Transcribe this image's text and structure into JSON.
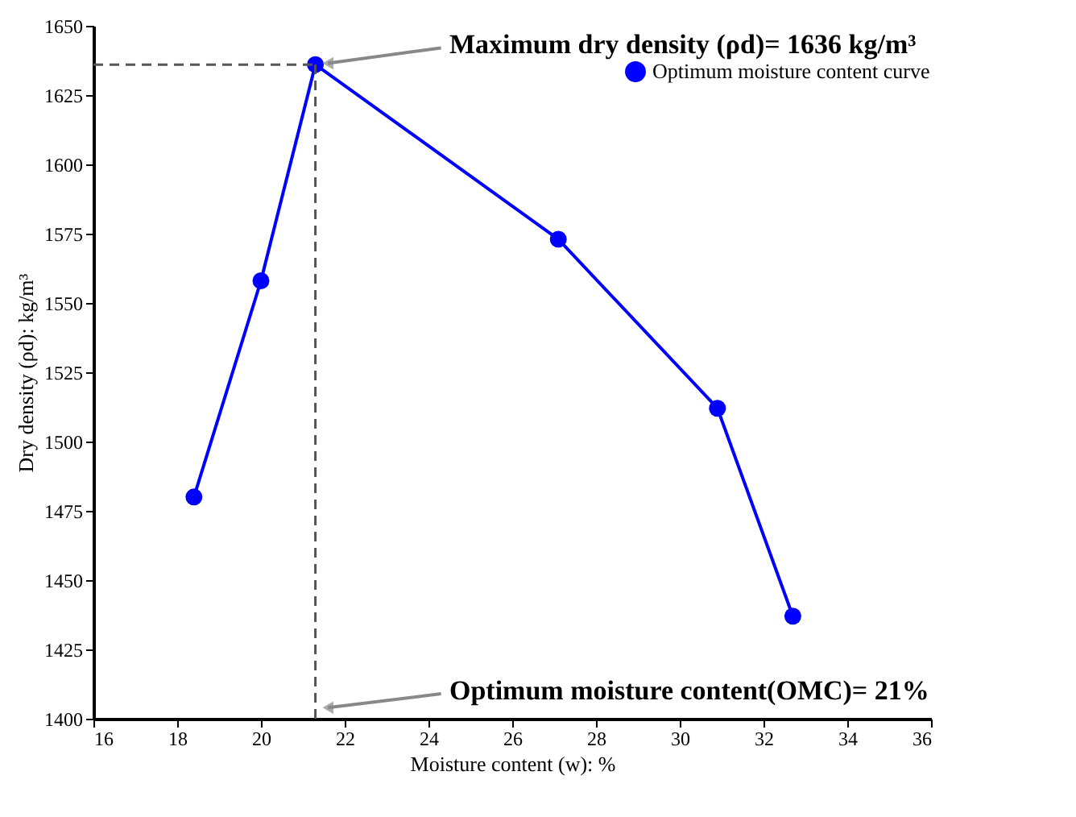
{
  "chart_data": {
    "type": "line",
    "xlabel": "Moisture content (w): %",
    "ylabel": "Dry density (ρd): kg/m³",
    "x": [
      18.4,
      20.0,
      21.3,
      27.1,
      30.9,
      32.7
    ],
    "series": [
      {
        "name": "Optimum moisture content curve",
        "color": "#0000ff",
        "values": [
          1480,
          1558,
          1636,
          1573,
          1512,
          1437
        ]
      }
    ],
    "xlim": [
      16,
      36
    ],
    "xticks": [
      16,
      18,
      20,
      22,
      24,
      26,
      28,
      30,
      32,
      34,
      36
    ],
    "ylim": [
      1400,
      1650
    ],
    "yticks": [
      1400,
      1425,
      1450,
      1475,
      1500,
      1525,
      1550,
      1575,
      1600,
      1625,
      1650
    ],
    "ref_lines": [
      {
        "axis": "y",
        "value": 1636,
        "label": "Maximum dry density (ρd)= 1636 kg/m³",
        "color": "#555555",
        "line_style": "dashed"
      },
      {
        "axis": "x",
        "value": 21.3,
        "label": "Optimum moisture content(OMC)= 21%",
        "color": "#555555",
        "line_style": "dashed"
      }
    ],
    "marker": "circle",
    "line_style": "solid",
    "grid": false,
    "legend": "top right"
  }
}
